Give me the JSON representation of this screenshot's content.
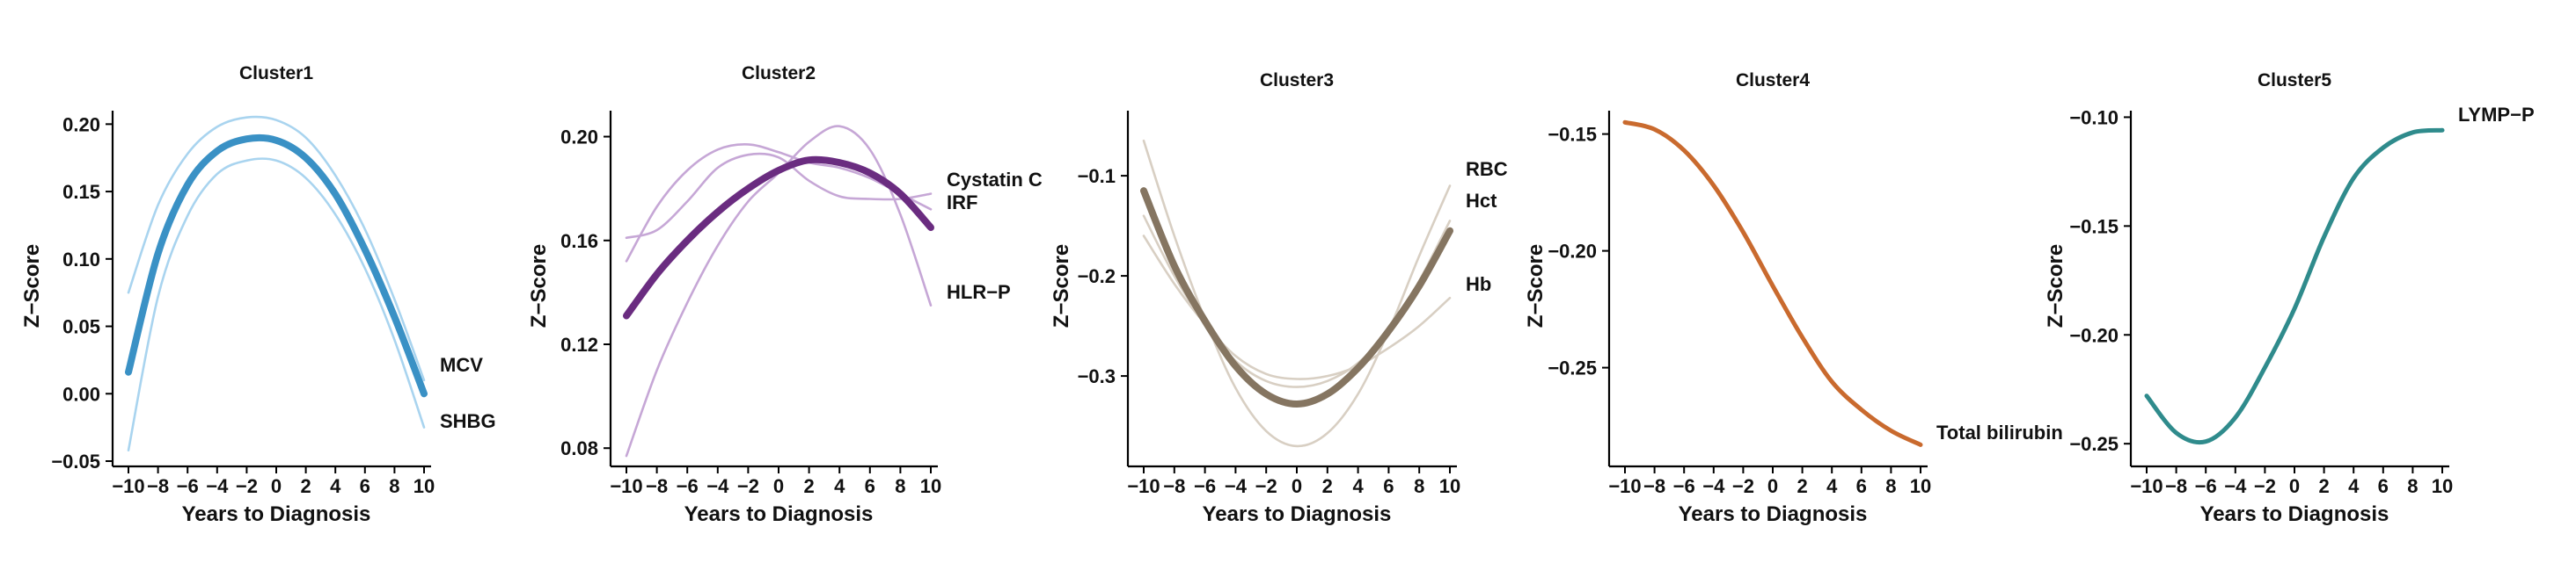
{
  "figure": {
    "xlabel": "Years to Diagnosis",
    "ylabel": "Z−Score"
  },
  "chart_data": [
    {
      "type": "line",
      "title": "Cluster1",
      "xlabel": "Years to Diagnosis",
      "ylabel": "Z−Score",
      "xlim": [
        -10,
        10
      ],
      "ylim": [
        -0.05,
        0.21
      ],
      "xticks": [
        -10,
        -8,
        -6,
        -4,
        -2,
        0,
        2,
        4,
        6,
        8,
        10
      ],
      "xtick_labels": [
        "−10",
        "−8",
        "−6",
        "−4",
        "−2",
        "0",
        "2",
        "4",
        "6",
        "8",
        "10"
      ],
      "yticks": [
        -0.05,
        0.0,
        0.05,
        0.1,
        0.15,
        0.2
      ],
      "ytick_labels": [
        "−0.05",
        "0.00",
        "0.05",
        "0.10",
        "0.15",
        "0.20"
      ],
      "x": [
        -10,
        -8,
        -6,
        -4,
        -2,
        0,
        2,
        4,
        6,
        8,
        10
      ],
      "mean_color": "#3a91c5",
      "member_color": "#a9d4ef",
      "series_labels": [
        "MCV",
        "SHBG"
      ],
      "mean": [
        0.016,
        0.104,
        0.155,
        0.18,
        0.189,
        0.188,
        0.175,
        0.148,
        0.107,
        0.057,
        0.0
      ],
      "members": [
        [
          0.075,
          0.14,
          0.178,
          0.198,
          0.205,
          0.203,
          0.19,
          0.162,
          0.122,
          0.07,
          0.01
        ],
        [
          -0.042,
          0.072,
          0.132,
          0.163,
          0.173,
          0.173,
          0.16,
          0.133,
          0.093,
          0.04,
          -0.025
        ]
      ]
    },
    {
      "type": "line",
      "title": "Cluster2",
      "xlabel": "Years to Diagnosis",
      "ylabel": "Z−Score",
      "xlim": [
        -10,
        10
      ],
      "ylim": [
        0.075,
        0.21
      ],
      "xticks": [
        -10,
        -8,
        -6,
        -4,
        -2,
        0,
        2,
        4,
        6,
        8,
        10
      ],
      "xtick_labels": [
        "−10",
        "−8",
        "−6",
        "−4",
        "−2",
        "0",
        "2",
        "4",
        "6",
        "8",
        "10"
      ],
      "yticks": [
        0.08,
        0.12,
        0.16,
        0.2
      ],
      "ytick_labels": [
        "0.08",
        "0.12",
        "0.16",
        "0.20"
      ],
      "x": [
        -10,
        -8,
        -6,
        -4,
        -2,
        0,
        2,
        4,
        6,
        8,
        10
      ],
      "mean_color": "#6a2c80",
      "member_color": "#c6a7d6",
      "series_labels": [
        "Cystatin C",
        "IRF",
        "HLR−P"
      ],
      "mean": [
        0.131,
        0.147,
        0.16,
        0.171,
        0.18,
        0.187,
        0.191,
        0.19,
        0.186,
        0.178,
        0.165
      ],
      "members": [
        [
          0.161,
          0.164,
          0.175,
          0.188,
          0.193,
          0.192,
          0.183,
          0.177,
          0.176,
          0.176,
          0.178
        ],
        [
          0.152,
          0.173,
          0.187,
          0.195,
          0.197,
          0.194,
          0.19,
          0.188,
          0.184,
          0.178,
          0.172
        ],
        [
          0.077,
          0.11,
          0.136,
          0.158,
          0.175,
          0.186,
          0.198,
          0.204,
          0.195,
          0.17,
          0.135
        ]
      ]
    },
    {
      "type": "line",
      "title": "Cluster3",
      "xlabel": "Years to Diagnosis",
      "ylabel": "Z−Score",
      "xlim": [
        -10,
        10
      ],
      "ylim": [
        -0.385,
        -0.035
      ],
      "xticks": [
        -10,
        -8,
        -6,
        -4,
        -2,
        0,
        2,
        4,
        6,
        8,
        10
      ],
      "xtick_labels": [
        "−10",
        "−8",
        "−6",
        "−4",
        "−2",
        "0",
        "2",
        "4",
        "6",
        "8",
        "10"
      ],
      "yticks": [
        -0.3,
        -0.2,
        -0.1
      ],
      "ytick_labels": [
        "−0.3",
        "−0.2",
        "−0.1"
      ],
      "x": [
        -10,
        -8,
        -6,
        -4,
        -2,
        0,
        2,
        4,
        6,
        8,
        10
      ],
      "mean_color": "#857561",
      "member_color": "#d8cfc3",
      "series_labels": [
        "RBC",
        "Hct",
        "Hb"
      ],
      "mean": [
        -0.115,
        -0.19,
        -0.245,
        -0.29,
        -0.318,
        -0.328,
        -0.318,
        -0.292,
        -0.255,
        -0.21,
        -0.155
      ],
      "members": [
        [
          -0.065,
          -0.16,
          -0.243,
          -0.312,
          -0.355,
          -0.37,
          -0.357,
          -0.318,
          -0.255,
          -0.18,
          -0.11
        ],
        [
          -0.14,
          -0.2,
          -0.248,
          -0.285,
          -0.305,
          -0.311,
          -0.305,
          -0.287,
          -0.255,
          -0.205,
          -0.145
        ],
        [
          -0.16,
          -0.208,
          -0.248,
          -0.28,
          -0.298,
          -0.303,
          -0.3,
          -0.29,
          -0.272,
          -0.25,
          -0.222
        ]
      ]
    },
    {
      "type": "line",
      "title": "Cluster4",
      "xlabel": "Years to Diagnosis",
      "ylabel": "Z−Score",
      "xlim": [
        -10,
        10
      ],
      "ylim": [
        -0.29,
        -0.14
      ],
      "xticks": [
        -10,
        -8,
        -6,
        -4,
        -2,
        0,
        2,
        4,
        6,
        8,
        10
      ],
      "xtick_labels": [
        "−10",
        "−8",
        "−6",
        "−4",
        "−2",
        "0",
        "2",
        "4",
        "6",
        "8",
        "10"
      ],
      "yticks": [
        -0.25,
        -0.2,
        -0.15
      ],
      "ytick_labels": [
        "−0.25",
        "−0.20",
        "−0.15"
      ],
      "x": [
        -10,
        -8,
        -6,
        -4,
        -2,
        0,
        2,
        4,
        6,
        8,
        10
      ],
      "mean_color": "#c96a2e",
      "member_color": "#c96a2e",
      "series_labels": [
        "Total bilirubin"
      ],
      "mean": [
        -0.145,
        -0.148,
        -0.157,
        -0.172,
        -0.192,
        -0.215,
        -0.237,
        -0.256,
        -0.268,
        -0.277,
        -0.283
      ],
      "members": []
    },
    {
      "type": "line",
      "title": "Cluster5",
      "xlabel": "Years to Diagnosis",
      "ylabel": "Z−Score",
      "xlim": [
        -10,
        10
      ],
      "ylim": [
        -0.258,
        -0.097
      ],
      "xticks": [
        -10,
        -8,
        -6,
        -4,
        -2,
        0,
        2,
        4,
        6,
        8,
        10
      ],
      "xtick_labels": [
        "−10",
        "−8",
        "−6",
        "−4",
        "−2",
        "0",
        "2",
        "4",
        "6",
        "8",
        "10"
      ],
      "yticks": [
        -0.25,
        -0.2,
        -0.15,
        -0.1
      ],
      "ytick_labels": [
        "−0.25",
        "−0.20",
        "−0.15",
        "−0.10"
      ],
      "x": [
        -10,
        -8,
        -6,
        -4,
        -2,
        0,
        2,
        4,
        6,
        8,
        10
      ],
      "mean_color": "#2f8b8c",
      "member_color": "#2f8b8c",
      "series_labels": [
        "LYMP−P"
      ],
      "mean": [
        -0.228,
        -0.245,
        -0.249,
        -0.238,
        -0.215,
        -0.188,
        -0.155,
        -0.128,
        -0.114,
        -0.107,
        -0.106
      ],
      "members": []
    }
  ]
}
